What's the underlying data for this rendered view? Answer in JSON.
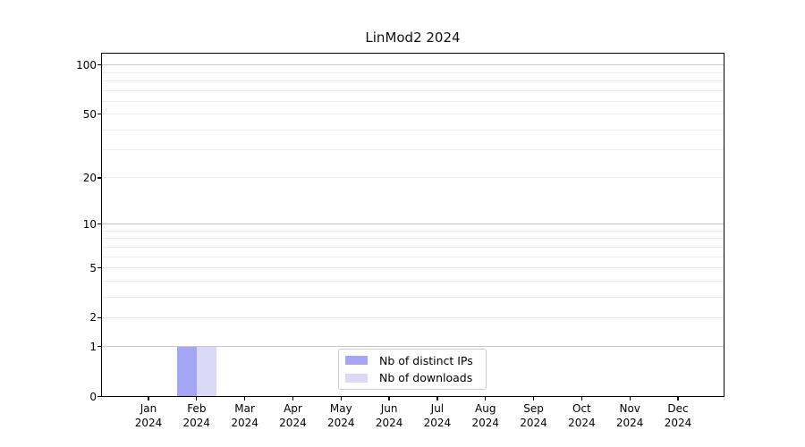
{
  "chart_data": {
    "type": "bar",
    "title": "LinMod2 2024",
    "x_tick_months": [
      "Jan",
      "Feb",
      "Mar",
      "Apr",
      "May",
      "Jun",
      "Jul",
      "Aug",
      "Sep",
      "Oct",
      "Nov",
      "Dec"
    ],
    "x_tick_year": "2024",
    "y_tick_labels": [
      0,
      1,
      2,
      5,
      10,
      20,
      50,
      100
    ],
    "y_major_gridlines": [
      1,
      10,
      100
    ],
    "y_minor_gridlines": [
      2,
      3,
      4,
      5,
      6,
      7,
      8,
      9,
      20,
      30,
      40,
      50,
      60,
      70,
      80,
      90
    ],
    "y_scale": "log10(value+1)",
    "ylim": [
      0,
      119
    ],
    "grid": true,
    "legend_position": "lower center",
    "series": [
      {
        "name": "Nb of distinct IPs",
        "color": "#a5a5f5",
        "values": [
          0,
          1,
          0,
          0,
          0,
          0,
          0,
          0,
          0,
          0,
          0,
          0
        ]
      },
      {
        "name": "Nb of downloads",
        "color": "#dadaf8",
        "values": [
          0,
          1,
          0,
          0,
          0,
          0,
          0,
          0,
          0,
          0,
          0,
          0
        ]
      }
    ]
  }
}
